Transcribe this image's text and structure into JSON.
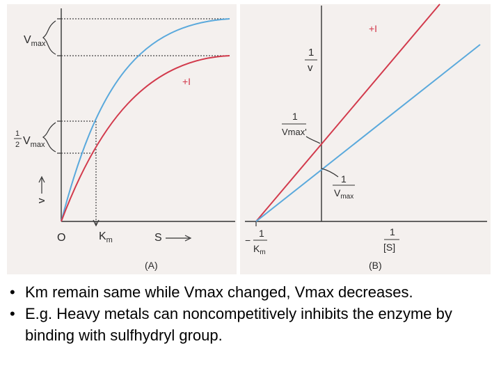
{
  "panel_a": {
    "vmax_label": "V",
    "vmax_sub": "max",
    "half_num": "1",
    "half_den": "2",
    "half_v": "V",
    "half_sub": "max",
    "yaxis": "v",
    "inhibitor": "+I",
    "origin": "O",
    "km_label": "K",
    "km_sub": "m",
    "s_label": "S",
    "caption": "(A)"
  },
  "panel_b": {
    "inhibitor": "+I",
    "inv_v_num": "1",
    "inv_v_den": "v",
    "inv_vmaxp_num": "1",
    "inv_vmaxp_den": "Vmax'",
    "inv_vmax_num": "1",
    "inv_vmax_den_v": "V",
    "inv_vmax_den_sub": "max",
    "neg_km_sign": "−",
    "neg_km_num": "1",
    "neg_km_den_k": "K",
    "neg_km_den_sub": "m",
    "inv_s_num": "1",
    "inv_s_den": "[S]",
    "caption": "(B)"
  },
  "colors": {
    "uninhibited": "#5aa9dc",
    "inhibited": "#d23a4c",
    "axis": "#333333"
  },
  "bullets": [
    "Km remain same while Vmax changed, Vmax decreases.",
    "E.g. Heavy metals can noncompetitively  inhibits the enzyme by  binding with sulfhydryl group."
  ],
  "bullet_symbol": "•"
}
